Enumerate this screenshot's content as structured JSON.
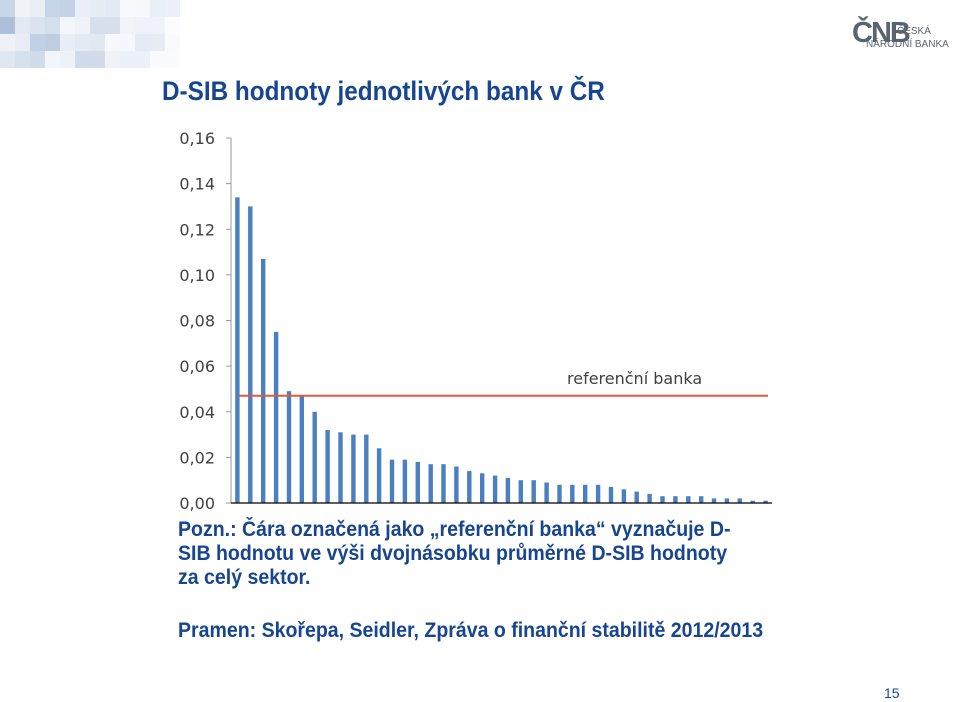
{
  "logo": {
    "mark": "ČNB",
    "line1": "ČESKÁ",
    "line2": "NÁRODNÍ BANKA"
  },
  "title": "D-SIB hodnoty jednotlivých bank v ČR",
  "chart_data": {
    "type": "bar",
    "title": "",
    "xlabel": "",
    "ylabel": "",
    "ylim": [
      0,
      0.16
    ],
    "yticks": [
      "0,00",
      "0,02",
      "0,04",
      "0,06",
      "0,08",
      "0,10",
      "0,12",
      "0,14",
      "0,16"
    ],
    "grid": false,
    "bar_color": "#4a7fc1",
    "values": [
      0.134,
      0.13,
      0.107,
      0.075,
      0.049,
      0.047,
      0.04,
      0.032,
      0.031,
      0.03,
      0.03,
      0.024,
      0.019,
      0.019,
      0.018,
      0.017,
      0.017,
      0.016,
      0.014,
      0.013,
      0.012,
      0.011,
      0.01,
      0.01,
      0.009,
      0.008,
      0.008,
      0.008,
      0.008,
      0.007,
      0.006,
      0.005,
      0.004,
      0.003,
      0.003,
      0.003,
      0.003,
      0.002,
      0.002,
      0.002,
      0.001,
      0.001
    ],
    "reference_line": {
      "label": "referenční banka",
      "value": 0.047,
      "color": "#e05a3e"
    }
  },
  "note": {
    "lines": [
      "Pozn.: Čára označená jako „referenční banka“ vyznačuje D-",
      "SIB hodnotu ve výši dvojnásobku průměrné D-SIB hodnoty",
      "za celý sektor."
    ]
  },
  "source": "Pramen: Skořepa, Seidler, Zpráva o finanční stabilitě 2012/2013",
  "page_number": "15"
}
